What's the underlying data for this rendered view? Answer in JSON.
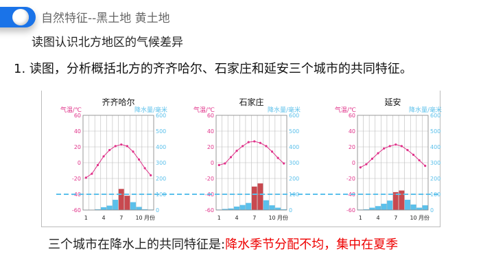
{
  "header": {
    "section_title": "自然特征--黑土地  黄土地",
    "subtitle": "读图认识北方地区的气候差异",
    "question": "1. 读图，分析概括北方的齐齐哈尔、石家庄和延安三个城市的共同特征。"
  },
  "answer": {
    "prefix": "三个城市在降水上的共同特征是:",
    "highlight": "降水季节分配不均，集中在夏季"
  },
  "colors": {
    "accent": "#1a73e8",
    "temp": "#e0338a",
    "precip": "#5bc0eb",
    "precip_high": "#c8494f",
    "answer": "#ee0000"
  },
  "chart_data": [
    {
      "type": "bar+line",
      "title": "齐齐哈尔",
      "ylabel_left": "气温/℃",
      "ylabel_right": "降水量/毫米",
      "xlabel": "月份",
      "x_ticks": [
        "1",
        "4",
        "7",
        "10"
      ],
      "temp_range": [
        -60,
        60
      ],
      "precip_range": [
        0,
        600
      ],
      "temp_ticks": [
        "60",
        "40",
        "20",
        "0",
        "-20",
        "-40",
        "-60"
      ],
      "precip_ticks": [
        "600",
        "500",
        "400",
        "300",
        "200",
        "100",
        "0"
      ],
      "reference_precip": 100,
      "temperature": [
        -19,
        -14,
        -3,
        8,
        16,
        21,
        23,
        21,
        14,
        4,
        -7,
        -16
      ],
      "precipitation": [
        2,
        2,
        5,
        18,
        28,
        65,
        135,
        92,
        50,
        20,
        5,
        3
      ],
      "highlight_months": [
        7,
        8
      ]
    },
    {
      "type": "bar+line",
      "title": "石家庄",
      "ylabel_left": "气温/℃",
      "ylabel_right": "降水量/毫米",
      "xlabel": "月份",
      "x_ticks": [
        "1",
        "4",
        "7",
        "10"
      ],
      "temp_range": [
        -60,
        60
      ],
      "precip_range": [
        0,
        600
      ],
      "temp_ticks": [
        "60",
        "40",
        "20",
        "0",
        "-20",
        "-40",
        "-60"
      ],
      "precip_ticks": [
        "600",
        "500",
        "400",
        "300",
        "200",
        "100",
        "0"
      ],
      "reference_precip": 100,
      "temperature": [
        -3,
        -1,
        7,
        15,
        21,
        26,
        27,
        25,
        21,
        14,
        6,
        -1
      ],
      "precipitation": [
        3,
        7,
        10,
        22,
        32,
        45,
        150,
        170,
        62,
        30,
        15,
        5
      ],
      "highlight_months": [
        7,
        8
      ]
    },
    {
      "type": "bar+line",
      "title": "延安",
      "ylabel_left": "气温/℃",
      "ylabel_right": "降水量/毫米",
      "xlabel": "月份",
      "x_ticks": [
        "1",
        "4",
        "7",
        "10"
      ],
      "temp_range": [
        -60,
        60
      ],
      "precip_range": [
        0,
        600
      ],
      "temp_ticks": [
        "60",
        "40",
        "20",
        "0",
        "-20",
        "-40",
        "-60"
      ],
      "precip_ticks": [
        "600",
        "500",
        "400",
        "300",
        "200",
        "100",
        "0"
      ],
      "reference_precip": 100,
      "temperature": [
        -6,
        -2,
        5,
        12,
        18,
        21,
        23,
        21,
        16,
        10,
        3,
        -4
      ],
      "precipitation": [
        3,
        5,
        15,
        25,
        40,
        60,
        115,
        125,
        65,
        35,
        15,
        30
      ],
      "highlight_months": [
        7,
        8
      ]
    }
  ]
}
